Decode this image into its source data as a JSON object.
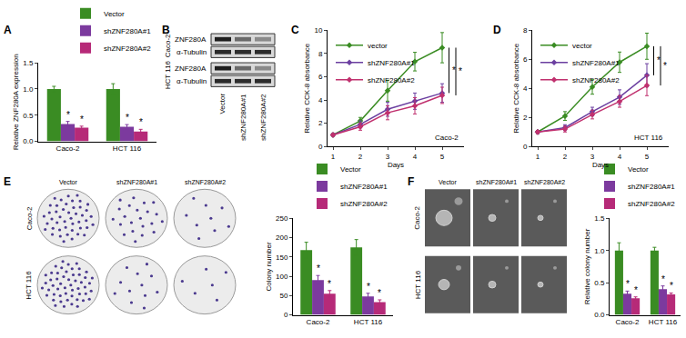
{
  "chart_data": [
    {
      "panel": "A",
      "type": "bar",
      "ylabel": "Relative ZNF280A expression",
      "categories": [
        "Caco-2",
        "HCT 116"
      ],
      "series": [
        {
          "name": "Vector",
          "color": "#3a8c23",
          "values": [
            1.0,
            1.0
          ],
          "errors": [
            0.05,
            0.1
          ]
        },
        {
          "name": "shZNF280A#1",
          "color": "#7c3a9e",
          "values": [
            0.33,
            0.28
          ],
          "errors": [
            0.05,
            0.04
          ]
        },
        {
          "name": "shZNF280A#2",
          "color": "#b62a78",
          "values": [
            0.26,
            0.19
          ],
          "errors": [
            0.03,
            0.04
          ]
        }
      ],
      "ylim": [
        0,
        1.5
      ],
      "yticks": [
        {
          "value": 0,
          "label": "0.0"
        },
        {
          "value": 0.5,
          "label": "0.5"
        },
        {
          "value": 1,
          "label": "1.0"
        },
        {
          "value": 1.5,
          "label": "1.5"
        }
      ],
      "grid": false,
      "legend": "top right",
      "annotations": [
        {
          "text": "*",
          "category": "Caco-2",
          "series": "shZNF280A#1"
        },
        {
          "text": "*",
          "category": "Caco-2",
          "series": "shZNF280A#2"
        },
        {
          "text": "*",
          "category": "HCT 116",
          "series": "shZNF280A#1"
        },
        {
          "text": "*",
          "category": "HCT 116",
          "series": "shZNF280A#2"
        }
      ]
    },
    {
      "panel": "C",
      "type": "line",
      "subtitle": "Caco-2",
      "xlabel": "Days",
      "ylabel": "Relative CCK-8 absorbance",
      "x": [
        1,
        2,
        3,
        4,
        5
      ],
      "xlim": [
        0.8,
        5.8
      ],
      "xticks": [
        1,
        2,
        3,
        4,
        5
      ],
      "ylim": [
        0,
        10
      ],
      "yticks": [
        0,
        2,
        4,
        6,
        8,
        10
      ],
      "marker": "diamond",
      "line_style": "solid",
      "grid": false,
      "legend": "top left",
      "series": [
        {
          "name": "vector",
          "color": "#3a8c23",
          "values": [
            1,
            2.2,
            4.8,
            7.3,
            8.5
          ],
          "errors": [
            0.1,
            0.3,
            0.9,
            0.8,
            1.3
          ]
        },
        {
          "name": "shZNF280A#1",
          "color": "#6b3fa0",
          "values": [
            1,
            1.9,
            3.2,
            3.9,
            4.6
          ],
          "errors": [
            0.1,
            0.3,
            0.6,
            0.7,
            0.8
          ]
        },
        {
          "name": "shZNF280A#2",
          "color": "#c0306e",
          "values": [
            1,
            1.7,
            2.9,
            3.5,
            4.4
          ],
          "errors": [
            0.1,
            0.3,
            0.6,
            0.7,
            0.7
          ]
        }
      ],
      "annotations": [
        {
          "text": "*",
          "series": "shZNF280A#1"
        },
        {
          "text": "*",
          "series": "shZNF280A#2"
        }
      ]
    },
    {
      "panel": "D",
      "type": "line",
      "subtitle": "HCT 116",
      "xlabel": "Days",
      "ylabel": "Relative CCK-8 absorbance",
      "x": [
        1,
        2,
        3,
        4,
        5
      ],
      "xlim": [
        0.8,
        5.8
      ],
      "xticks": [
        1,
        2,
        3,
        4,
        5
      ],
      "ylim": [
        0,
        8
      ],
      "yticks": [
        0,
        2,
        4,
        6,
        8
      ],
      "marker": "diamond",
      "line_style": "solid",
      "grid": false,
      "legend": "top left",
      "series": [
        {
          "name": "vector",
          "color": "#3a8c23",
          "values": [
            1,
            2.1,
            4.1,
            5.8,
            6.9
          ],
          "errors": [
            0.1,
            0.3,
            0.5,
            0.7,
            0.9
          ]
        },
        {
          "name": "shZNF280A#1",
          "color": "#6b3fa0",
          "values": [
            1,
            1.3,
            2.4,
            3.4,
            4.9
          ],
          "errors": [
            0.1,
            0.2,
            0.3,
            0.5,
            0.8
          ]
        },
        {
          "name": "shZNF280A#2",
          "color": "#c0306e",
          "values": [
            1,
            1.2,
            2.2,
            3.1,
            4.2
          ],
          "errors": [
            0.1,
            0.2,
            0.3,
            0.4,
            0.7
          ]
        }
      ],
      "annotations": [
        {
          "text": "*",
          "series": "shZNF280A#1"
        },
        {
          "text": "*",
          "series": "shZNF280A#2"
        }
      ]
    },
    {
      "panel": "E",
      "type": "bar",
      "ylabel": "Colony number",
      "categories": [
        "Caco-2",
        "HCT 116"
      ],
      "series": [
        {
          "name": "Vector",
          "color": "#3a8c23",
          "values": [
            168,
            175
          ],
          "errors": [
            20,
            20
          ]
        },
        {
          "name": "shZNF280A#1",
          "color": "#7c3a9e",
          "values": [
            90,
            48
          ],
          "errors": [
            12,
            8
          ]
        },
        {
          "name": "shZNF280A#2",
          "color": "#b62a78",
          "values": [
            55,
            33
          ],
          "errors": [
            8,
            6
          ]
        }
      ],
      "ylim": [
        0,
        250
      ],
      "yticks": [
        0,
        50,
        100,
        150,
        200,
        250
      ],
      "grid": false,
      "legend": "top right",
      "annotations": [
        {
          "text": "*",
          "category": "Caco-2",
          "series": "shZNF280A#1"
        },
        {
          "text": "*",
          "category": "Caco-2",
          "series": "shZNF280A#2"
        },
        {
          "text": "*",
          "category": "HCT 116",
          "series": "shZNF280A#1"
        },
        {
          "text": "*",
          "category": "HCT 116",
          "series": "shZNF280A#2"
        }
      ]
    },
    {
      "panel": "F",
      "type": "bar",
      "ylabel": "Relative colony number",
      "categories": [
        "Caco-2",
        "HCT 116"
      ],
      "series": [
        {
          "name": "Vector",
          "color": "#3a8c23",
          "values": [
            1.0,
            1.0
          ],
          "errors": [
            0.12,
            0.05
          ]
        },
        {
          "name": "shZNF280A#1",
          "color": "#7c3a9e",
          "values": [
            0.33,
            0.4
          ],
          "errors": [
            0.04,
            0.05
          ]
        },
        {
          "name": "shZNF280A#2",
          "color": "#b62a78",
          "values": [
            0.26,
            0.32
          ],
          "errors": [
            0.02,
            0.02
          ]
        }
      ],
      "ylim": [
        0,
        1.5
      ],
      "yticks": [
        {
          "value": 0,
          "label": "0.0"
        },
        {
          "value": 0.5,
          "label": "0.5"
        },
        {
          "value": 1,
          "label": "1.0"
        },
        {
          "value": 1.5,
          "label": "1.5"
        }
      ],
      "grid": false,
      "legend": "top right",
      "annotations": [
        {
          "text": "*",
          "category": "Caco-2",
          "series": "shZNF280A#1"
        },
        {
          "text": "*",
          "category": "Caco-2",
          "series": "shZNF280A#2"
        },
        {
          "text": "*",
          "category": "HCT 116",
          "series": "shZNF280A#1"
        },
        {
          "text": "*",
          "category": "HCT 116",
          "series": "shZNF280A#2"
        }
      ]
    }
  ],
  "blot": {
    "panel": "B",
    "cell_lines": [
      "Caco-2",
      "HCT 116"
    ],
    "proteins": [
      "ZNF280A",
      "α-Tubulin"
    ],
    "lanes": [
      "Vector",
      "shZNF280A#1",
      "shZNF280A#2"
    ]
  },
  "colony_images": {
    "rows": [
      "Caco-2",
      "HCT 116"
    ],
    "columns": [
      "Vector",
      "shZNF280A#1",
      "shZNF280A#2"
    ]
  },
  "soft_agar_images": {
    "rows": [
      "Caco-2",
      "HCT 116"
    ],
    "columns": [
      "Vector",
      "shZNF280A#1",
      "shZNF280A#2"
    ]
  }
}
